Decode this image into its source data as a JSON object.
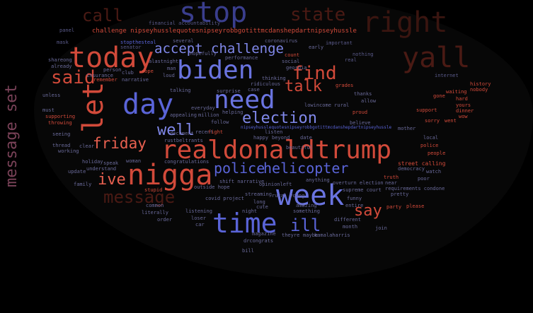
{
  "side_label": "message set",
  "colors": {
    "background": "#000000",
    "blue": "#5a64d8",
    "red": "#d24a3a",
    "dark_red": "#4a1a14",
    "mauve": "#7a4258"
  },
  "words": {
    "stop": "stop",
    "call": "call",
    "state": "state",
    "right": "right",
    "yall": "yall",
    "today": "today",
    "accept": "accept",
    "challenge": "challenge",
    "biden": "biden",
    "find": "find",
    "said": "said",
    "let": "let",
    "day": "day",
    "need": "need",
    "talk": "talk",
    "election": "election",
    "well": "well",
    "friday": "friday",
    "realdonaldtrump": "realdonaldtrump",
    "nigga": "nigga",
    "police": "police",
    "helicopter": "helicopter",
    "ive": "ive",
    "message": "message",
    "week": "week",
    "say": "say",
    "time": "time",
    "ill": "ill",
    "challenge_hashtag": "challenge nipseyhusslequotesnipseyrobbgotittmcdanshepdartnipseyhussle",
    "financial": "financial accountability",
    "coronavirus": "coronavirus",
    "covid": "covid project",
    "supreme_court": "supreme court",
    "thanks": "thanks",
    "street": "street calling",
    "history": "history",
    "dinner": "dinner",
    "support": "support",
    "believe": "believe",
    "biden_small": "amazing",
    "bill": "bill",
    "opinion": "opinionleft",
    "shift": "shift narrative",
    "congratulations": "congratulations",
    "understand": "understand",
    "holiday": "holiday",
    "update": "update",
    "family": "family",
    "thread": "thread",
    "seeing": "seeing",
    "throwing": "throwing",
    "working": "working",
    "supporting": "supporting",
    "unless": "unless",
    "must": "must",
    "already": "already",
    "sharing": "shareong",
    "remember": "remember",
    "narrative": "narrative",
    "insurance": "insurance",
    "person": "person",
    "dope": "dope",
    "several": "several",
    "hopefully": "hopefully",
    "performance": "performance",
    "social": "social",
    "thinking": "thinking",
    "georgia": "georgia",
    "early": "early",
    "count": "count",
    "nothing": "nothing",
    "real": "real",
    "important": "important",
    "internet": "internet",
    "waiting": "waiting",
    "nobody": "nobody",
    "proud": "proud",
    "allow": "allow",
    "mother": "mother",
    "sorry": "sorry",
    "went": "went",
    "local": "local",
    "police_small": "police",
    "people": "people",
    "watch": "watch",
    "poor": "poor",
    "party": "party",
    "please": "please",
    "pretty": "pretty",
    "join": "join",
    "different": "different",
    "month": "month",
    "funny": "funny",
    "entire": "entire",
    "anything": "anything",
    "rural_young": "rural young",
    "streaming": "streaming",
    "cute": "cute",
    "night": "night",
    "long": "long",
    "loser": "loser",
    "car": "car",
    "magazine": "magazine",
    "drcongrats": "drcongrats",
    "something": "something",
    "kamalaharris": "kamalaharris",
    "theyre": "theyre",
    "maybe": "maybe",
    "order": "order",
    "literally": "literally",
    "listening": "listening",
    "common": "common",
    "stupid": "stupid",
    "outside": "outside hope",
    "fight": "fight",
    "follow": "follow",
    "helping": "helping",
    "surprise": "surprise",
    "case": "case",
    "ridiculous": "ridiculous",
    "beyond": "beyond",
    "listen": "listen",
    "happy": "happy",
    "date": "date",
    "everyday": "everyday",
    "talking": "talking",
    "appealing": "appealing",
    "million": "million",
    "document": "document",
    "recent": "recent",
    "rustbeltrants": "rustbeltrants",
    "woman": "woman",
    "speak": "speak",
    "clear": "clear",
    "nipsey_hashtag": "nipseyhusslequotesnipseyrobbgotittmcdanshepdartnipseyhussle",
    "stopthesteal": "stopthesteal",
    "alastnight": "alastnight",
    "loud": "loud",
    "man": "man",
    "club": "club",
    "gone": "gone",
    "hard": "hard",
    "yours": "yours",
    "wow": "wow",
    "grades": "grades",
    "panel": "panel",
    "mask": "mask",
    "senator": "senator",
    "lowincome": "lowincome rural",
    "requirements": "requirements condone",
    "truth": "truth",
    "near": "near",
    "overturn": "overturn election",
    "beautiful": "beautiful",
    "democracy": "democracy"
  }
}
